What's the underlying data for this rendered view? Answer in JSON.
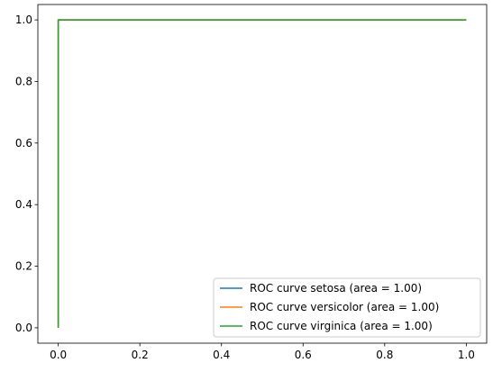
{
  "chart_data": {
    "type": "line",
    "title": "",
    "xlabel": "",
    "ylabel": "",
    "xlim": [
      -0.05,
      1.05
    ],
    "ylim": [
      -0.05,
      1.05
    ],
    "xticks": [
      0.0,
      0.2,
      0.4,
      0.6,
      0.8,
      1.0
    ],
    "yticks": [
      0.0,
      0.2,
      0.4,
      0.6,
      0.8,
      1.0
    ],
    "xtick_labels": [
      "0.0",
      "0.2",
      "0.4",
      "0.6",
      "0.8",
      "1.0"
    ],
    "ytick_labels": [
      "0.0",
      "0.2",
      "0.4",
      "0.6",
      "0.8",
      "1.0"
    ],
    "grid": false,
    "legend_position": "lower-right",
    "series": [
      {
        "name": "ROC curve setosa (area = 1.00)",
        "color": "#1f77b4",
        "x": [
          0,
          0,
          1
        ],
        "y": [
          0,
          1,
          1
        ]
      },
      {
        "name": "ROC curve versicolor (area = 1.00)",
        "color": "#ff7f0e",
        "x": [
          0,
          0,
          1
        ],
        "y": [
          0,
          1,
          1
        ]
      },
      {
        "name": "ROC curve virginica (area = 1.00)",
        "color": "#2ca02c",
        "x": [
          0,
          0,
          1
        ],
        "y": [
          0,
          1,
          1
        ]
      }
    ]
  }
}
